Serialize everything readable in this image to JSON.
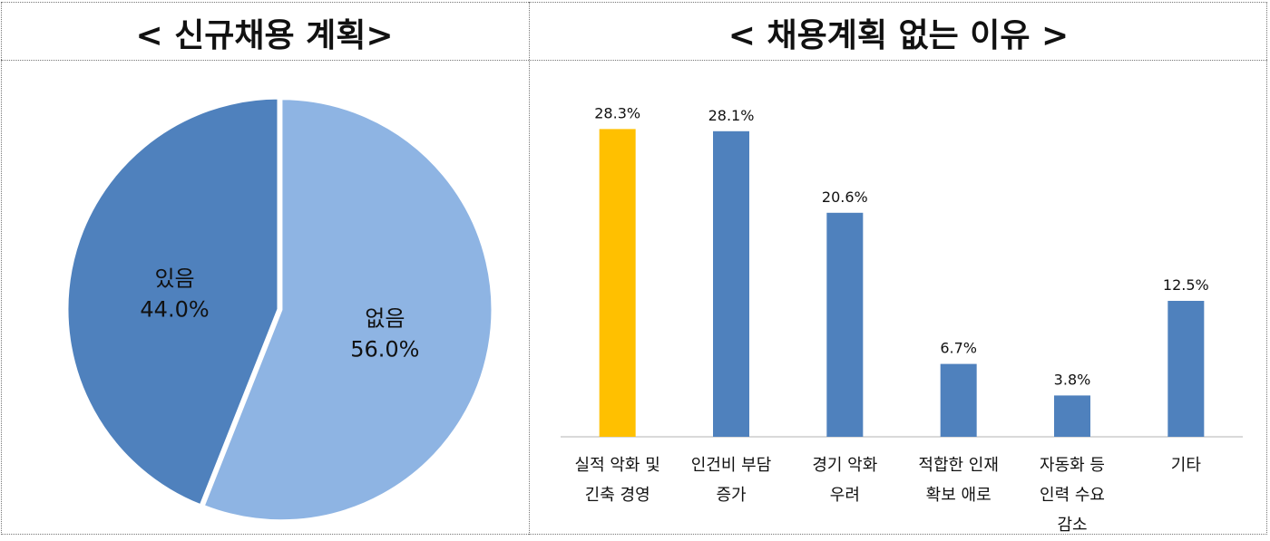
{
  "chart_data": [
    {
      "type": "pie",
      "title": "< 신규채용 계획>",
      "slices": [
        {
          "label": "없음",
          "value": 56.0,
          "display": "56.0%",
          "color": "#8eb4e3"
        },
        {
          "label": "있음",
          "value": 44.0,
          "display": "44.0%",
          "color": "#4f81bd"
        }
      ]
    },
    {
      "type": "bar",
      "title": "< 채용계획 없는 이유 >",
      "categories": [
        [
          "실적 악화 및",
          "긴축 경영"
        ],
        [
          "인건비 부담",
          "증가"
        ],
        [
          "경기 악화",
          "우려"
        ],
        [
          "적합한 인재",
          "확보 애로"
        ],
        [
          "자동화 등",
          "인력 수요",
          "감소"
        ],
        [
          "기타"
        ]
      ],
      "values": [
        28.3,
        28.1,
        20.6,
        6.7,
        3.8,
        12.5
      ],
      "value_labels": [
        "28.3%",
        "28.1%",
        "20.6%",
        "6.7%",
        "3.8%",
        "12.5%"
      ],
      "colors": [
        "#ffc000",
        "#4f81bd",
        "#4f81bd",
        "#4f81bd",
        "#4f81bd",
        "#4f81bd"
      ],
      "ylim": [
        0,
        30
      ],
      "grid": false
    }
  ]
}
